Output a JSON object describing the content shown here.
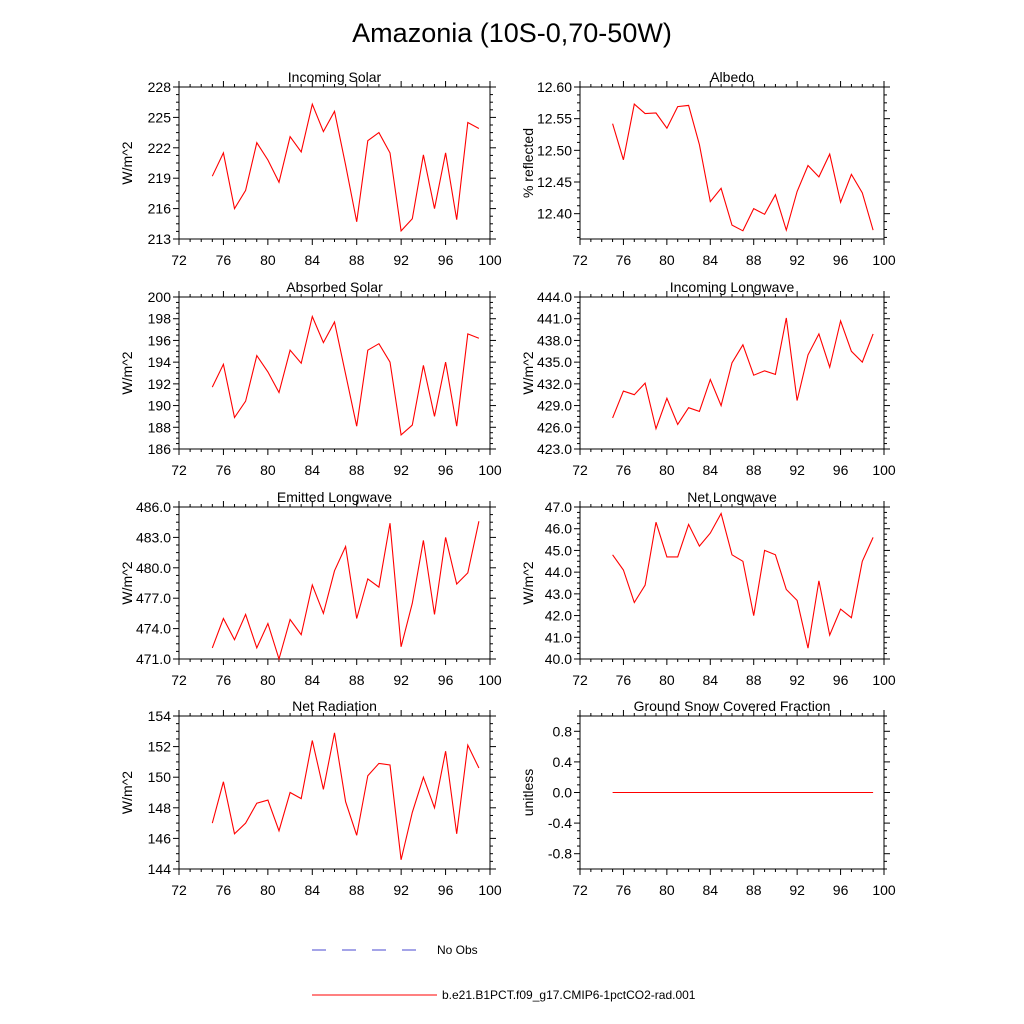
{
  "figure": {
    "title": "Amazonia (10S-0,70-50W)",
    "legend": [
      {
        "label": "No Obs",
        "color": "#4a4ad0",
        "style": "dashed"
      },
      {
        "label": "b.e21.B1PCT.f09_g17.CMIP6-1pctCO2-rad.001",
        "color": "#ff0000",
        "style": "solid"
      }
    ]
  },
  "chart_data": [
    {
      "type": "line",
      "title": "Incoming Solar",
      "ylabel": "W/m^2",
      "xlim": [
        72,
        100
      ],
      "xticks": [
        "72",
        "76",
        "80",
        "84",
        "88",
        "92",
        "96",
        "100"
      ],
      "ylim": [
        213,
        228
      ],
      "yticks": [
        "213",
        "216",
        "219",
        "222",
        "225",
        "228"
      ],
      "series": [
        {
          "color": "#ff0000",
          "x": [
            75,
            76,
            77,
            78,
            79,
            80,
            81,
            82,
            83,
            84,
            85,
            86,
            87,
            88,
            89,
            90,
            91,
            92,
            93,
            94,
            95,
            96,
            97,
            98,
            99
          ],
          "y": [
            219.2,
            221.5,
            216.0,
            217.8,
            222.5,
            220.8,
            218.6,
            223.1,
            221.6,
            226.3,
            223.6,
            225.6,
            220.3,
            214.7,
            222.7,
            223.5,
            221.5,
            213.8,
            215.0,
            221.3,
            216.0,
            221.5,
            214.9,
            224.5,
            223.9
          ]
        }
      ]
    },
    {
      "type": "line",
      "title": "Albedo",
      "ylabel": "% reflected",
      "xlim": [
        72,
        100
      ],
      "xticks": [
        "72",
        "76",
        "80",
        "84",
        "88",
        "92",
        "96",
        "100"
      ],
      "ylim": [
        12.36,
        12.6
      ],
      "yticks": [
        "12.40",
        "12.45",
        "12.50",
        "12.55",
        "12.60"
      ],
      "series": [
        {
          "color": "#ff0000",
          "x": [
            75,
            76,
            77,
            78,
            79,
            80,
            81,
            82,
            83,
            84,
            85,
            86,
            87,
            88,
            89,
            90,
            91,
            92,
            93,
            94,
            95,
            96,
            97,
            98,
            99
          ],
          "y": [
            12.542,
            12.485,
            12.573,
            12.558,
            12.559,
            12.535,
            12.569,
            12.571,
            12.509,
            12.419,
            12.44,
            12.382,
            12.373,
            12.408,
            12.399,
            12.43,
            12.374,
            12.435,
            12.476,
            12.458,
            12.494,
            12.418,
            12.462,
            12.433,
            12.374
          ]
        }
      ]
    },
    {
      "type": "line",
      "title": "Absorbed Solar",
      "ylabel": "W/m^2",
      "xlim": [
        72,
        100
      ],
      "xticks": [
        "72",
        "76",
        "80",
        "84",
        "88",
        "92",
        "96",
        "100"
      ],
      "ylim": [
        186,
        200
      ],
      "yticks": [
        "186",
        "188",
        "190",
        "192",
        "194",
        "196",
        "198",
        "200"
      ],
      "series": [
        {
          "color": "#ff0000",
          "x": [
            75,
            76,
            77,
            78,
            79,
            80,
            81,
            82,
            83,
            84,
            85,
            86,
            87,
            88,
            89,
            90,
            91,
            92,
            93,
            94,
            95,
            96,
            97,
            98,
            99
          ],
          "y": [
            191.7,
            193.8,
            188.9,
            190.4,
            194.6,
            193.1,
            191.2,
            195.1,
            193.9,
            198.2,
            195.8,
            197.7,
            192.9,
            188.1,
            195.1,
            195.7,
            194.0,
            187.3,
            188.2,
            193.7,
            189.0,
            194.0,
            188.1,
            196.6,
            196.2
          ]
        }
      ]
    },
    {
      "type": "line",
      "title": "Incoming Longwave",
      "ylabel": "W/m^2",
      "xlim": [
        72,
        100
      ],
      "xticks": [
        "72",
        "76",
        "80",
        "84",
        "88",
        "92",
        "96",
        "100"
      ],
      "ylim": [
        423.0,
        444.0
      ],
      "yticks": [
        "423.0",
        "426.0",
        "429.0",
        "432.0",
        "435.0",
        "438.0",
        "441.0",
        "444.0"
      ],
      "series": [
        {
          "color": "#ff0000",
          "x": [
            75,
            76,
            77,
            78,
            79,
            80,
            81,
            82,
            83,
            84,
            85,
            86,
            87,
            88,
            89,
            90,
            91,
            92,
            93,
            94,
            95,
            96,
            97,
            98,
            99
          ],
          "y": [
            427.3,
            431.0,
            430.5,
            432.1,
            425.8,
            430.0,
            426.4,
            428.7,
            428.2,
            432.6,
            429.0,
            434.9,
            437.4,
            433.2,
            433.8,
            433.3,
            441.1,
            429.7,
            436.0,
            438.9,
            434.3,
            440.7,
            436.5,
            435.0,
            438.9
          ]
        }
      ]
    },
    {
      "type": "line",
      "title": "Emitted Longwave",
      "ylabel": "W/m^2",
      "xlim": [
        72,
        100
      ],
      "xticks": [
        "72",
        "76",
        "80",
        "84",
        "88",
        "92",
        "96",
        "100"
      ],
      "ylim": [
        471.0,
        486.0
      ],
      "yticks": [
        "471.0",
        "474.0",
        "477.0",
        "480.0",
        "483.0",
        "486.0"
      ],
      "series": [
        {
          "color": "#ff0000",
          "x": [
            75,
            76,
            77,
            78,
            79,
            80,
            81,
            82,
            83,
            84,
            85,
            86,
            87,
            88,
            89,
            90,
            91,
            92,
            93,
            94,
            95,
            96,
            97,
            98,
            99
          ],
          "y": [
            472.1,
            475.0,
            472.9,
            475.4,
            472.1,
            474.5,
            471.0,
            474.9,
            473.4,
            478.3,
            475.5,
            479.7,
            482.1,
            475.0,
            478.9,
            478.1,
            484.4,
            472.2,
            476.5,
            482.7,
            475.4,
            483.0,
            478.4,
            479.5,
            484.6
          ]
        }
      ]
    },
    {
      "type": "line",
      "title": "Net Longwave",
      "ylabel": "W/m^2",
      "xlim": [
        72,
        100
      ],
      "xticks": [
        "72",
        "76",
        "80",
        "84",
        "88",
        "92",
        "96",
        "100"
      ],
      "ylim": [
        40.0,
        47.0
      ],
      "yticks": [
        "40.0",
        "41.0",
        "42.0",
        "43.0",
        "44.0",
        "45.0",
        "46.0",
        "47.0"
      ],
      "series": [
        {
          "color": "#ff0000",
          "x": [
            75,
            76,
            77,
            78,
            79,
            80,
            81,
            82,
            83,
            84,
            85,
            86,
            87,
            88,
            89,
            90,
            91,
            92,
            93,
            94,
            95,
            96,
            97,
            98,
            99
          ],
          "y": [
            44.8,
            44.1,
            42.6,
            43.4,
            46.3,
            44.7,
            44.7,
            46.2,
            45.2,
            45.8,
            46.7,
            44.8,
            44.5,
            42.0,
            45.0,
            44.8,
            43.2,
            42.7,
            40.5,
            43.6,
            41.1,
            42.3,
            41.9,
            44.5,
            45.6
          ]
        }
      ]
    },
    {
      "type": "line",
      "title": "Net Radiation",
      "ylabel": "W/m^2",
      "xlim": [
        72,
        100
      ],
      "xticks": [
        "72",
        "76",
        "80",
        "84",
        "88",
        "92",
        "96",
        "100"
      ],
      "ylim": [
        144,
        154
      ],
      "yticks": [
        "144",
        "146",
        "148",
        "150",
        "152",
        "154"
      ],
      "series": [
        {
          "color": "#ff0000",
          "x": [
            75,
            76,
            77,
            78,
            79,
            80,
            81,
            82,
            83,
            84,
            85,
            86,
            87,
            88,
            89,
            90,
            91,
            92,
            93,
            94,
            95,
            96,
            97,
            98,
            99
          ],
          "y": [
            147.0,
            149.7,
            146.3,
            147.0,
            148.3,
            148.5,
            146.5,
            149.0,
            148.6,
            152.4,
            149.2,
            152.9,
            148.4,
            146.2,
            150.1,
            150.9,
            150.8,
            144.6,
            147.7,
            150.0,
            148.0,
            151.7,
            146.3,
            152.1,
            150.6
          ]
        }
      ]
    },
    {
      "type": "line",
      "title": "Ground Snow Covered Fraction",
      "ylabel": "unitless",
      "xlim": [
        72,
        100
      ],
      "xticks": [
        "72",
        "76",
        "80",
        "84",
        "88",
        "92",
        "96",
        "100"
      ],
      "ylim": [
        -1.0,
        1.0
      ],
      "yticks": [
        "-0.8",
        "-0.4",
        "0.0",
        "0.4",
        "0.8"
      ],
      "series": [
        {
          "color": "#ff0000",
          "x": [
            75,
            76,
            77,
            78,
            79,
            80,
            81,
            82,
            83,
            84,
            85,
            86,
            87,
            88,
            89,
            90,
            91,
            92,
            93,
            94,
            95,
            96,
            97,
            98,
            99
          ],
          "y": [
            0,
            0,
            0,
            0,
            0,
            0,
            0,
            0,
            0,
            0,
            0,
            0,
            0,
            0,
            0,
            0,
            0,
            0,
            0,
            0,
            0,
            0,
            0,
            0,
            0
          ]
        }
      ]
    }
  ]
}
